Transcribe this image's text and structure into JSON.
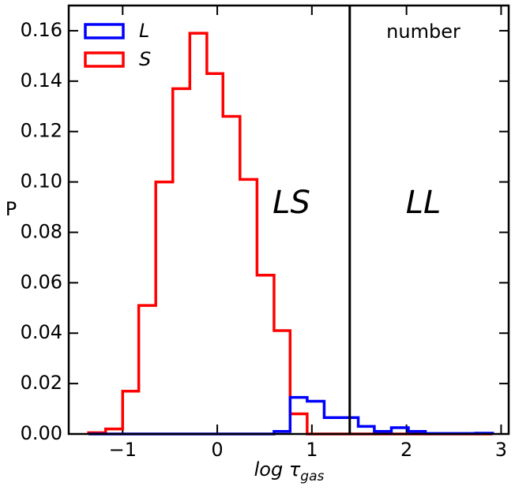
{
  "chart_data": {
    "type": "histogram",
    "xlabel": "log τ",
    "xlabel_sub": "gas",
    "ylabel": "P",
    "annotations": [
      "number",
      "LS",
      "LL"
    ],
    "vline": 1.4,
    "bins": [
      -1.36,
      -1.18,
      -1.0,
      -0.83,
      -0.65,
      -0.47,
      -0.29,
      -0.11,
      0.06,
      0.24,
      0.42,
      0.6,
      0.77,
      0.95,
      1.13,
      1.31,
      1.49,
      1.66,
      1.84,
      2.02,
      2.2,
      2.38,
      2.55,
      2.73,
      2.91
    ],
    "series": [
      {
        "name": "L",
        "color": "#0000ff",
        "values": [
          0,
          0,
          0,
          0,
          0,
          0,
          0,
          0,
          0,
          0,
          0,
          0.001,
          0.0145,
          0.013,
          0.0065,
          0.0065,
          0.003,
          0.001,
          0.0025,
          0.001,
          0.0002,
          0.0002,
          0.0002,
          0.0003
        ]
      },
      {
        "name": "S",
        "color": "#ff0000",
        "values": [
          0.0005,
          0.002,
          0.017,
          0.051,
          0.1,
          0.137,
          0.159,
          0.143,
          0.126,
          0.101,
          0.063,
          0.041,
          0.008,
          0,
          0,
          0,
          0,
          0,
          0,
          0,
          0,
          0,
          0,
          0
        ]
      }
    ],
    "xlim": [
      -1.57,
      3.08
    ],
    "xticks": [
      {
        "value": -1,
        "label": "−1"
      },
      0,
      1,
      2,
      3
    ],
    "ylim": [
      0,
      0.17
    ],
    "yticks": [
      {
        "value": 0,
        "label": "0.00"
      },
      {
        "value": 0.02,
        "label": "0.02"
      },
      {
        "value": 0.04,
        "label": "0.04"
      },
      {
        "value": 0.06,
        "label": "0.06"
      },
      {
        "value": 0.08,
        "label": "0.08"
      },
      {
        "value": 0.1,
        "label": "0.10"
      },
      {
        "value": 0.12,
        "label": "0.12"
      },
      {
        "value": 0.14,
        "label": "0.14"
      },
      {
        "value": 0.16,
        "label": "0.16"
      }
    ],
    "legend": "upper left"
  }
}
